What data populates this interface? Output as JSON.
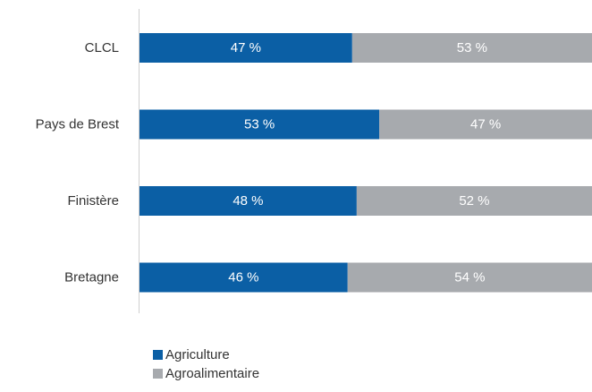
{
  "chart_data": {
    "type": "bar",
    "orientation": "horizontal",
    "stacked": true,
    "categories": [
      "CLCL",
      "Pays de Brest",
      "Finistère",
      "Bretagne"
    ],
    "series": [
      {
        "name": "Agriculture",
        "color": "#0b5fa5",
        "values": [
          47,
          53,
          48,
          46
        ],
        "labels": [
          "47 %",
          "53 %",
          "48 %",
          "46 %"
        ]
      },
      {
        "name": "Agroalimentaire",
        "color": "#a7aaae",
        "values": [
          53,
          47,
          52,
          54
        ],
        "labels": [
          "53 %",
          "47 %",
          "52 %",
          "54 %"
        ]
      }
    ],
    "xlim": [
      0,
      100
    ],
    "grid": false,
    "legend_position": "bottom-left"
  }
}
